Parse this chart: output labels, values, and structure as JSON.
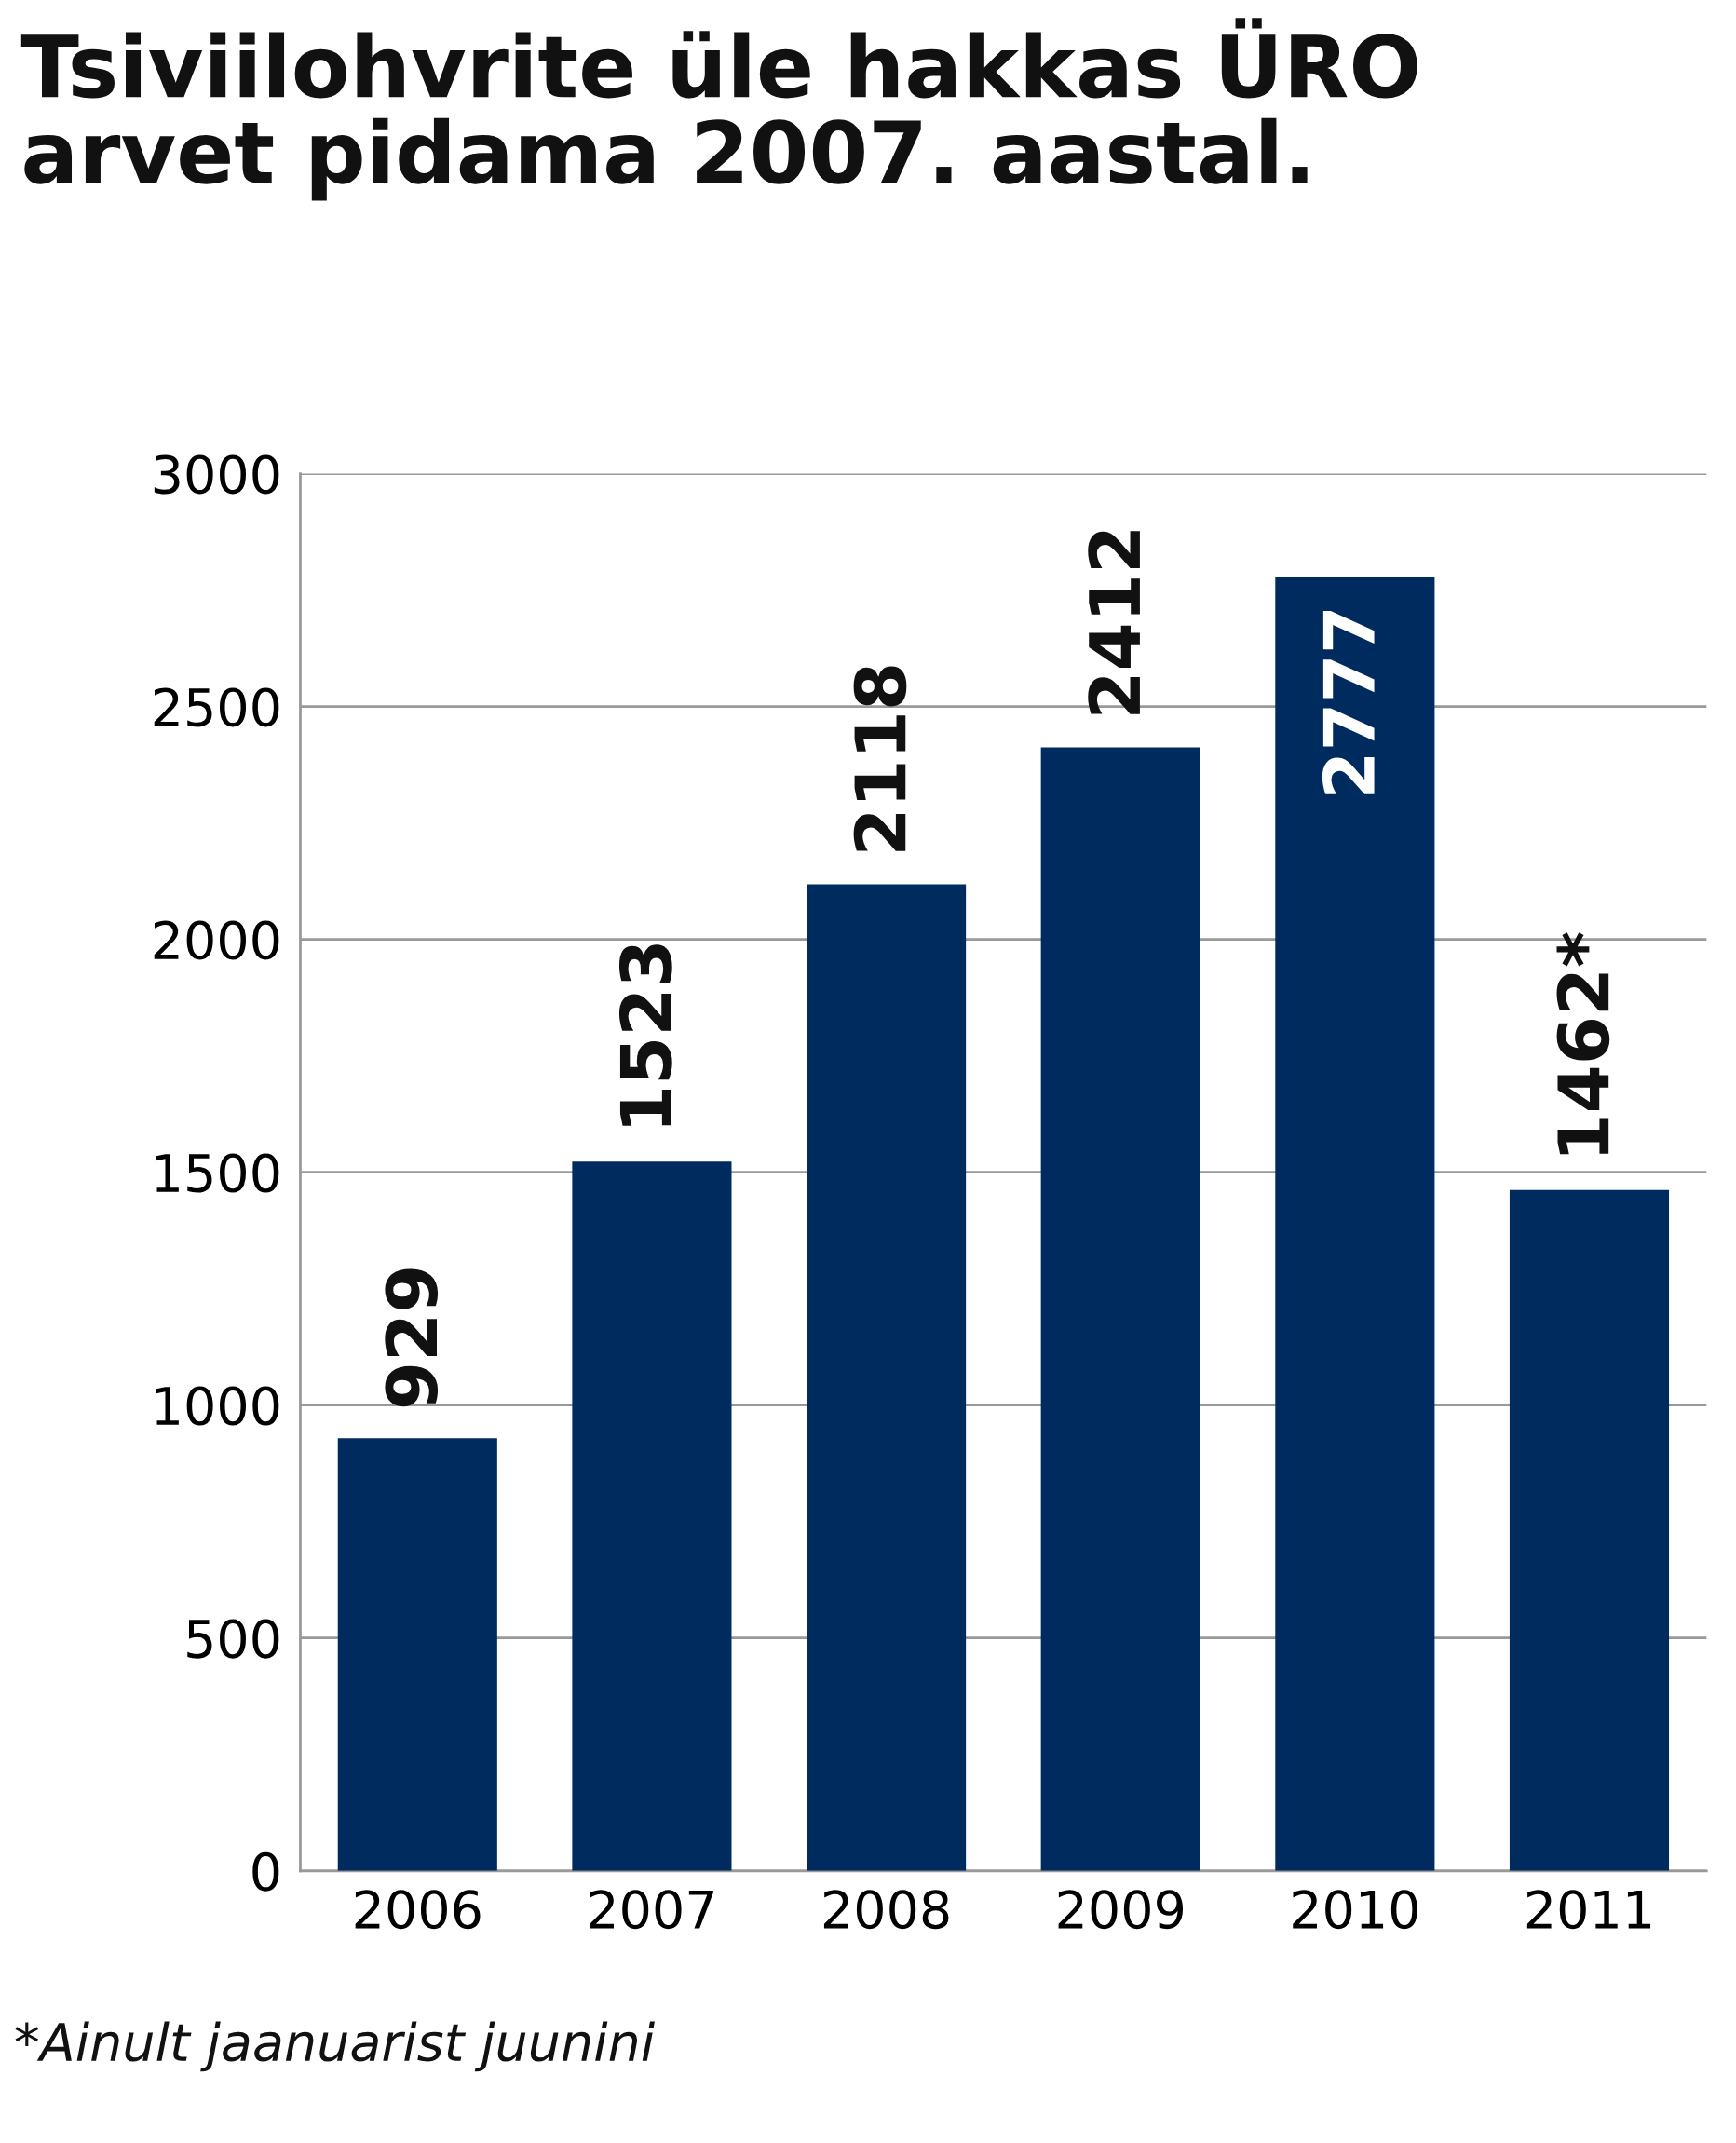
{
  "chart_data": {
    "type": "bar",
    "title": "Tsiviilohvrite üle hakkas ÜRO\narvet pidama 2007. aastal.",
    "categories": [
      "2006",
      "2007",
      "2008",
      "2009",
      "2010",
      "2011"
    ],
    "values": [
      929,
      1523,
      2118,
      2412,
      2777,
      1462
    ],
    "value_labels": [
      "929",
      "1523",
      "2118",
      "2412",
      "2777",
      "1462*"
    ],
    "color": "#002b5e",
    "ylim": [
      0,
      3000
    ],
    "yticks": [
      0,
      500,
      1000,
      1500,
      2000,
      2500,
      3000
    ],
    "grid": "y",
    "annotations": [
      "*Ainult jaanuarist juunini"
    ]
  }
}
